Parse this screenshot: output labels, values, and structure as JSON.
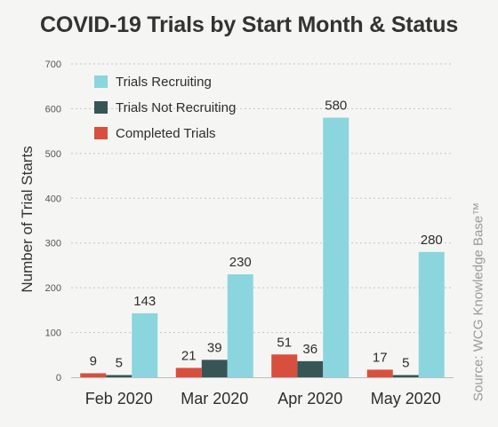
{
  "chart_data": {
    "type": "bar",
    "title": "COVID-19 Trials by Start Month & Status",
    "xlabel": "",
    "ylabel": "Number of Trial Starts",
    "ylim": [
      0,
      700
    ],
    "yticks": [
      0,
      100,
      200,
      300,
      400,
      500,
      600,
      700
    ],
    "categories": [
      "Feb 2020",
      "Mar 2020",
      "Apr 2020",
      "May 2020"
    ],
    "series": [
      {
        "name": "Completed Trials",
        "color": "#d94f3d",
        "values": [
          9,
          21,
          51,
          17
        ]
      },
      {
        "name": "Trials Not Recruiting",
        "color": "#385556",
        "values": [
          5,
          39,
          36,
          5
        ]
      },
      {
        "name": "Trials Recruiting",
        "color": "#8bd5df",
        "values": [
          143,
          230,
          580,
          280
        ]
      }
    ],
    "legend_order": [
      "Trials Recruiting",
      "Trials Not Recruiting",
      "Completed Trials"
    ],
    "legend_position": "top-left",
    "grid": true,
    "source": "Source: WCG Knowledge Base™"
  }
}
